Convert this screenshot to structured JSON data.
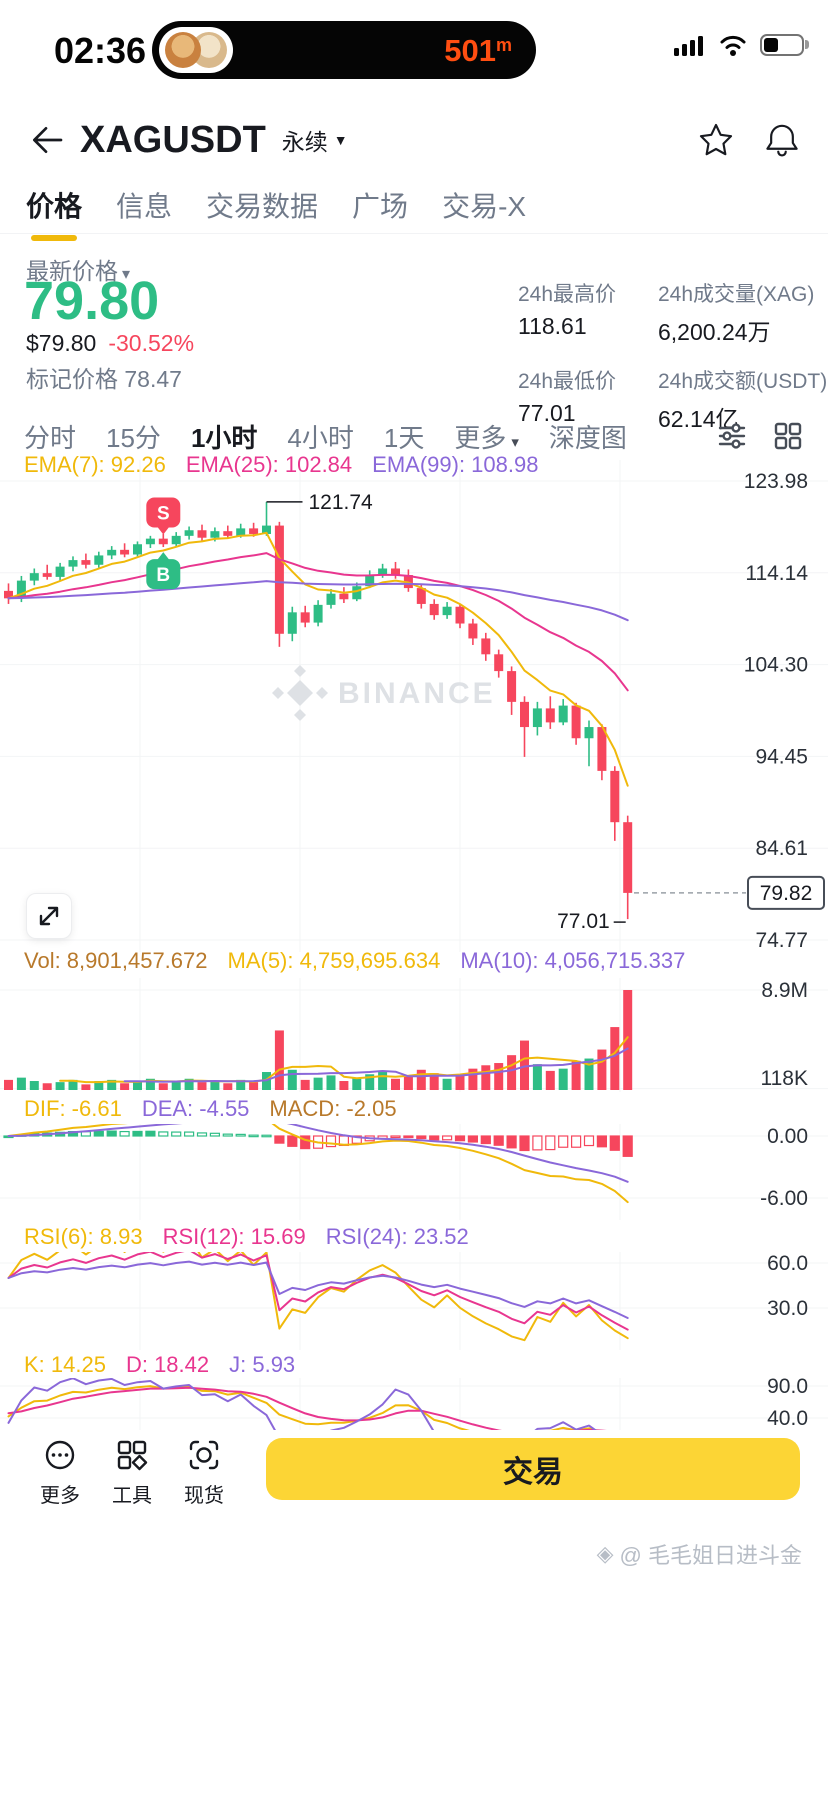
{
  "status_bar": {
    "time": "02:36",
    "notification_count": "501",
    "notification_unit": "m"
  },
  "header": {
    "title": "XAGUSDT",
    "contract_type": "永续"
  },
  "nav_tabs": {
    "items": [
      {
        "label": "价格",
        "active": true
      },
      {
        "label": "信息",
        "active": false
      },
      {
        "label": "交易数据",
        "active": false
      },
      {
        "label": "广场",
        "active": false
      },
      {
        "label": "交易-X",
        "active": false
      }
    ]
  },
  "price_panel": {
    "label": "最新价格",
    "last_price": "79.80",
    "usd_price": "$79.80",
    "change_pct": "-30.52%",
    "mark_price_label": "标记价格",
    "mark_price": "78.47",
    "stats": [
      {
        "label": "24h最高价",
        "value": "118.61"
      },
      {
        "label": "24h成交量(XAG)",
        "value": "6,200.24万"
      },
      {
        "label": "24h最低价",
        "value": "77.01"
      },
      {
        "label": "24h成交额(USDT)",
        "value": "62.14亿"
      }
    ]
  },
  "timeframe_bar": {
    "items": [
      {
        "label": "分时"
      },
      {
        "label": "15分"
      },
      {
        "label": "1小时",
        "active": true
      },
      {
        "label": "4小时"
      },
      {
        "label": "1天"
      },
      {
        "label": "更多"
      },
      {
        "label": "深度图"
      }
    ]
  },
  "ema_labels": [
    {
      "text": "EMA(7): 92.26",
      "color": "#F0B90B"
    },
    {
      "text": "EMA(25): 102.84",
      "color": "#E8368F"
    },
    {
      "text": "EMA(99): 108.98",
      "color": "#8A68D9"
    }
  ],
  "volume_labels": [
    {
      "text": "Vol: 8,901,457.672",
      "color": "#B8792B"
    },
    {
      "text": "MA(5): 4,759,695.634",
      "color": "#F0B90B"
    },
    {
      "text": "MA(10): 4,056,715.337",
      "color": "#8A68D9"
    }
  ],
  "macd_labels": [
    {
      "text": "DIF: -6.61",
      "color": "#F0B90B"
    },
    {
      "text": "DEA: -4.55",
      "color": "#8A68D9"
    },
    {
      "text": "MACD: -2.05",
      "color": "#B8792B"
    }
  ],
  "rsi_labels": [
    {
      "text": "RSI(6): 8.93",
      "color": "#F0B90B"
    },
    {
      "text": "RSI(12): 15.69",
      "color": "#E8368F"
    },
    {
      "text": "RSI(24): 23.52",
      "color": "#8A68D9"
    }
  ],
  "kdj_labels": [
    {
      "text": "K: 14.25",
      "color": "#F0B90B"
    },
    {
      "text": "D: 18.42",
      "color": "#E8368F"
    },
    {
      "text": "J: 5.93",
      "color": "#8A68D9"
    }
  ],
  "bottom_bar": {
    "items": [
      {
        "label": "更多"
      },
      {
        "label": "工具"
      },
      {
        "label": "现货"
      }
    ],
    "trade_button": "交易"
  },
  "chart_watermark": "BINANCE",
  "watermark": "@ 毛毛姐日进斗金",
  "chart_data": {
    "type": "candlestick",
    "colors": {
      "up": "#2EBD85",
      "down": "#F6465D",
      "ema7": "#F0B90B",
      "ema25": "#E8368F",
      "ema99": "#8A68D9"
    },
    "price_ticks": [
      "123.98",
      "114.14",
      "104.30",
      "94.45",
      "84.61",
      "74.77"
    ],
    "candles": [
      [
        112.2,
        113.0,
        110.8,
        111.4
      ],
      [
        111.4,
        113.8,
        111.0,
        113.3
      ],
      [
        113.3,
        114.6,
        112.8,
        114.1
      ],
      [
        114.1,
        115.0,
        113.4,
        113.7
      ],
      [
        113.7,
        115.2,
        113.3,
        114.8
      ],
      [
        114.8,
        115.9,
        114.3,
        115.5
      ],
      [
        115.5,
        116.2,
        114.6,
        115.0
      ],
      [
        115.0,
        116.4,
        114.7,
        116.0
      ],
      [
        116.0,
        117.0,
        115.6,
        116.6
      ],
      [
        116.6,
        117.3,
        115.8,
        116.1
      ],
      [
        116.1,
        117.5,
        115.9,
        117.2
      ],
      [
        117.2,
        118.1,
        116.8,
        117.8
      ],
      [
        117.8,
        118.3,
        116.9,
        117.2
      ],
      [
        117.2,
        118.5,
        117.0,
        118.1
      ],
      [
        118.1,
        119.1,
        117.7,
        118.7
      ],
      [
        118.7,
        119.3,
        117.6,
        117.9
      ],
      [
        117.9,
        119.0,
        117.5,
        118.6
      ],
      [
        118.6,
        119.2,
        117.8,
        118.1
      ],
      [
        118.1,
        119.4,
        117.9,
        118.9
      ],
      [
        118.9,
        119.5,
        118.0,
        118.3
      ],
      [
        118.3,
        121.74,
        118.1,
        119.2
      ],
      [
        119.2,
        119.6,
        106.2,
        107.6
      ],
      [
        107.6,
        110.5,
        106.8,
        109.9
      ],
      [
        109.9,
        110.6,
        108.3,
        108.8
      ],
      [
        108.8,
        111.2,
        108.4,
        110.7
      ],
      [
        110.7,
        112.4,
        110.3,
        111.9
      ],
      [
        111.9,
        112.6,
        110.9,
        111.3
      ],
      [
        111.3,
        113.1,
        111.1,
        112.7
      ],
      [
        112.7,
        114.4,
        112.5,
        113.9
      ],
      [
        113.9,
        115.1,
        113.6,
        114.6
      ],
      [
        114.6,
        115.3,
        113.5,
        113.9
      ],
      [
        113.9,
        114.5,
        112.1,
        112.5
      ],
      [
        112.5,
        112.9,
        110.3,
        110.8
      ],
      [
        110.8,
        111.3,
        109.1,
        109.6
      ],
      [
        109.6,
        111.0,
        109.2,
        110.5
      ],
      [
        110.5,
        110.8,
        108.2,
        108.7
      ],
      [
        108.7,
        109.2,
        106.4,
        107.1
      ],
      [
        107.1,
        107.7,
        104.7,
        105.4
      ],
      [
        105.4,
        105.9,
        102.9,
        103.6
      ],
      [
        103.6,
        104.1,
        98.9,
        100.3
      ],
      [
        100.3,
        100.9,
        94.4,
        97.6
      ],
      [
        97.6,
        100.3,
        96.7,
        99.6
      ],
      [
        99.6,
        100.9,
        97.4,
        98.1
      ],
      [
        98.1,
        100.6,
        97.8,
        99.9
      ],
      [
        99.9,
        100.2,
        95.7,
        96.4
      ],
      [
        96.4,
        98.3,
        93.4,
        97.6
      ],
      [
        97.6,
        97.9,
        91.9,
        92.9
      ],
      [
        92.9,
        93.4,
        85.4,
        87.4
      ],
      [
        87.4,
        88.1,
        77.01,
        79.82
      ]
    ],
    "volumes_m": [
      0.9,
      1.1,
      0.8,
      0.6,
      0.7,
      0.9,
      0.5,
      0.8,
      0.9,
      0.6,
      0.8,
      1.0,
      0.6,
      0.8,
      1.0,
      0.7,
      0.8,
      0.6,
      0.9,
      0.7,
      1.6,
      5.3,
      1.8,
      0.9,
      1.1,
      1.3,
      0.8,
      1.1,
      1.4,
      1.6,
      1.0,
      1.2,
      1.8,
      1.5,
      1.0,
      1.4,
      1.9,
      2.2,
      2.4,
      3.1,
      4.4,
      2.3,
      1.7,
      1.9,
      2.6,
      2.8,
      3.6,
      5.6,
      8.9
    ],
    "vol_ticks": [
      {
        "label": "8.9M",
        "v": 8.9
      },
      {
        "label": "118K",
        "v": 0.118
      }
    ],
    "macd_ticks": [
      {
        "label": "0.00",
        "v": 0
      },
      {
        "label": "-6.00",
        "v": -6
      }
    ],
    "rsi_ticks": [
      {
        "label": "60.0",
        "v": 60
      },
      {
        "label": "30.0",
        "v": 30
      }
    ],
    "kdj_ticks": [
      {
        "label": "90.0",
        "v": 90
      },
      {
        "label": "40.0",
        "v": 40
      }
    ],
    "annotations": {
      "high": {
        "text": "121.74",
        "index": 20
      },
      "low": {
        "text": "77.01",
        "index": 48
      },
      "last_price": {
        "text": "79.82",
        "value": 79.82
      }
    },
    "trade_markers": [
      {
        "label": "S",
        "index": 12,
        "price": 120.6,
        "color": "#F6465D"
      },
      {
        "label": "B",
        "index": 12,
        "price": 114.0,
        "color": "#2EBD85"
      }
    ]
  }
}
